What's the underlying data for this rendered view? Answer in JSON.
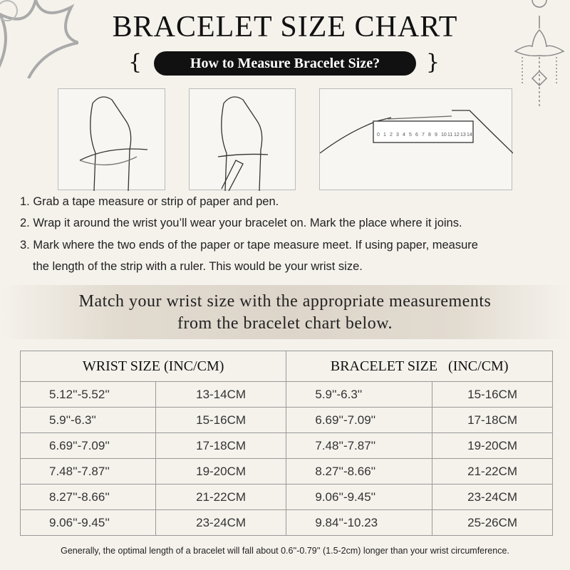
{
  "title": "BRACELET SIZE CHART",
  "subtitle": "How to Measure Bracelet Size?",
  "ruler_numbers": [
    "0",
    "1",
    "2",
    "3",
    "4",
    "5",
    "6",
    "7",
    "8",
    "9",
    "10",
    "11",
    "12",
    "13",
    "14"
  ],
  "steps": [
    "1. Grab a tape measure or strip of paper and pen.",
    "2. Wrap it around the wrist you’ll wear your bracelet on. Mark the place where it joins.",
    "3. Mark where the two ends of the paper or tape measure meet. If using paper, measure",
    "the length of the strip with a ruler. This would be your wrist size."
  ],
  "banner": [
    "Match your wrist size with the appropriate measurements",
    "from the bracelet chart below."
  ],
  "table": {
    "headers": [
      "WRIST SIZE (INC/CM)",
      "BRACELET SIZE   (INC/CM)"
    ],
    "rows": [
      [
        "5.12''-5.52''",
        "13-14CM",
        "5.9''-6.3''",
        "15-16CM"
      ],
      [
        "5.9''-6.3''",
        "15-16CM",
        "6.69''-7.09''",
        "17-18CM"
      ],
      [
        "6.69''-7.09''",
        "17-18CM",
        "7.48''-7.87''",
        "19-20CM"
      ],
      [
        "7.48''-7.87''",
        "19-20CM",
        "8.27''-8.66''",
        "21-22CM"
      ],
      [
        "8.27''-8.66''",
        "21-22CM",
        "9.06''-9.45''",
        "23-24CM"
      ],
      [
        "9.06''-9.45''",
        "23-24CM",
        "9.84''-10.23",
        "25-26CM"
      ]
    ]
  },
  "footer": "Generally, the optimal length of a bracelet will fall about 0.6''-0.79'' (1.5-2cm) longer than your wrist circumference."
}
